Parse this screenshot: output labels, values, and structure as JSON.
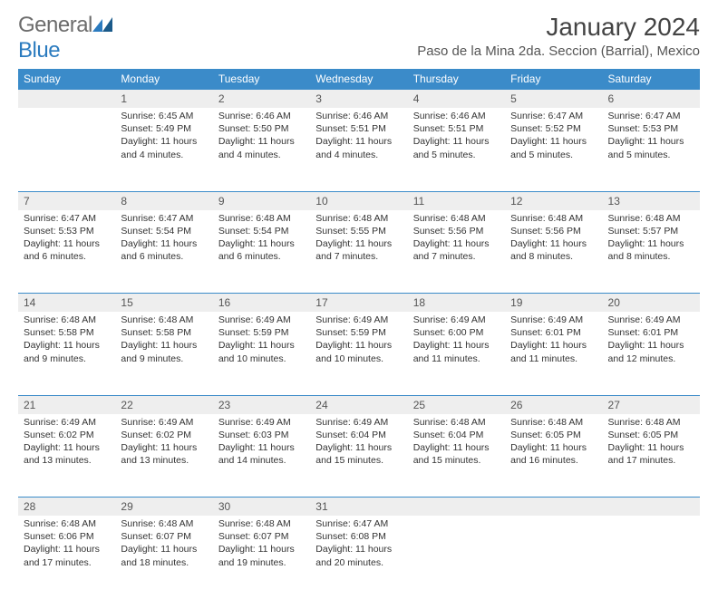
{
  "logo": {
    "text1": "General",
    "text2": "Blue"
  },
  "title": "January 2024",
  "location": "Paso de la Mina 2da. Seccion (Barrial), Mexico",
  "colors": {
    "header_bg": "#3b8bc9",
    "header_text": "#ffffff",
    "daynum_bg": "#eeeeee",
    "daynum_border": "#3b8bc9",
    "body_text": "#333333",
    "logo_gray": "#6c6c6c",
    "logo_blue": "#2b7bbf"
  },
  "weekdays": [
    "Sunday",
    "Monday",
    "Tuesday",
    "Wednesday",
    "Thursday",
    "Friday",
    "Saturday"
  ],
  "weeks": [
    [
      null,
      {
        "num": "1",
        "sunrise": "Sunrise: 6:45 AM",
        "sunset": "Sunset: 5:49 PM",
        "daylight": "Daylight: 11 hours and 4 minutes."
      },
      {
        "num": "2",
        "sunrise": "Sunrise: 6:46 AM",
        "sunset": "Sunset: 5:50 PM",
        "daylight": "Daylight: 11 hours and 4 minutes."
      },
      {
        "num": "3",
        "sunrise": "Sunrise: 6:46 AM",
        "sunset": "Sunset: 5:51 PM",
        "daylight": "Daylight: 11 hours and 4 minutes."
      },
      {
        "num": "4",
        "sunrise": "Sunrise: 6:46 AM",
        "sunset": "Sunset: 5:51 PM",
        "daylight": "Daylight: 11 hours and 5 minutes."
      },
      {
        "num": "5",
        "sunrise": "Sunrise: 6:47 AM",
        "sunset": "Sunset: 5:52 PM",
        "daylight": "Daylight: 11 hours and 5 minutes."
      },
      {
        "num": "6",
        "sunrise": "Sunrise: 6:47 AM",
        "sunset": "Sunset: 5:53 PM",
        "daylight": "Daylight: 11 hours and 5 minutes."
      }
    ],
    [
      {
        "num": "7",
        "sunrise": "Sunrise: 6:47 AM",
        "sunset": "Sunset: 5:53 PM",
        "daylight": "Daylight: 11 hours and 6 minutes."
      },
      {
        "num": "8",
        "sunrise": "Sunrise: 6:47 AM",
        "sunset": "Sunset: 5:54 PM",
        "daylight": "Daylight: 11 hours and 6 minutes."
      },
      {
        "num": "9",
        "sunrise": "Sunrise: 6:48 AM",
        "sunset": "Sunset: 5:54 PM",
        "daylight": "Daylight: 11 hours and 6 minutes."
      },
      {
        "num": "10",
        "sunrise": "Sunrise: 6:48 AM",
        "sunset": "Sunset: 5:55 PM",
        "daylight": "Daylight: 11 hours and 7 minutes."
      },
      {
        "num": "11",
        "sunrise": "Sunrise: 6:48 AM",
        "sunset": "Sunset: 5:56 PM",
        "daylight": "Daylight: 11 hours and 7 minutes."
      },
      {
        "num": "12",
        "sunrise": "Sunrise: 6:48 AM",
        "sunset": "Sunset: 5:56 PM",
        "daylight": "Daylight: 11 hours and 8 minutes."
      },
      {
        "num": "13",
        "sunrise": "Sunrise: 6:48 AM",
        "sunset": "Sunset: 5:57 PM",
        "daylight": "Daylight: 11 hours and 8 minutes."
      }
    ],
    [
      {
        "num": "14",
        "sunrise": "Sunrise: 6:48 AM",
        "sunset": "Sunset: 5:58 PM",
        "daylight": "Daylight: 11 hours and 9 minutes."
      },
      {
        "num": "15",
        "sunrise": "Sunrise: 6:48 AM",
        "sunset": "Sunset: 5:58 PM",
        "daylight": "Daylight: 11 hours and 9 minutes."
      },
      {
        "num": "16",
        "sunrise": "Sunrise: 6:49 AM",
        "sunset": "Sunset: 5:59 PM",
        "daylight": "Daylight: 11 hours and 10 minutes."
      },
      {
        "num": "17",
        "sunrise": "Sunrise: 6:49 AM",
        "sunset": "Sunset: 5:59 PM",
        "daylight": "Daylight: 11 hours and 10 minutes."
      },
      {
        "num": "18",
        "sunrise": "Sunrise: 6:49 AM",
        "sunset": "Sunset: 6:00 PM",
        "daylight": "Daylight: 11 hours and 11 minutes."
      },
      {
        "num": "19",
        "sunrise": "Sunrise: 6:49 AM",
        "sunset": "Sunset: 6:01 PM",
        "daylight": "Daylight: 11 hours and 11 minutes."
      },
      {
        "num": "20",
        "sunrise": "Sunrise: 6:49 AM",
        "sunset": "Sunset: 6:01 PM",
        "daylight": "Daylight: 11 hours and 12 minutes."
      }
    ],
    [
      {
        "num": "21",
        "sunrise": "Sunrise: 6:49 AM",
        "sunset": "Sunset: 6:02 PM",
        "daylight": "Daylight: 11 hours and 13 minutes."
      },
      {
        "num": "22",
        "sunrise": "Sunrise: 6:49 AM",
        "sunset": "Sunset: 6:02 PM",
        "daylight": "Daylight: 11 hours and 13 minutes."
      },
      {
        "num": "23",
        "sunrise": "Sunrise: 6:49 AM",
        "sunset": "Sunset: 6:03 PM",
        "daylight": "Daylight: 11 hours and 14 minutes."
      },
      {
        "num": "24",
        "sunrise": "Sunrise: 6:49 AM",
        "sunset": "Sunset: 6:04 PM",
        "daylight": "Daylight: 11 hours and 15 minutes."
      },
      {
        "num": "25",
        "sunrise": "Sunrise: 6:48 AM",
        "sunset": "Sunset: 6:04 PM",
        "daylight": "Daylight: 11 hours and 15 minutes."
      },
      {
        "num": "26",
        "sunrise": "Sunrise: 6:48 AM",
        "sunset": "Sunset: 6:05 PM",
        "daylight": "Daylight: 11 hours and 16 minutes."
      },
      {
        "num": "27",
        "sunrise": "Sunrise: 6:48 AM",
        "sunset": "Sunset: 6:05 PM",
        "daylight": "Daylight: 11 hours and 17 minutes."
      }
    ],
    [
      {
        "num": "28",
        "sunrise": "Sunrise: 6:48 AM",
        "sunset": "Sunset: 6:06 PM",
        "daylight": "Daylight: 11 hours and 17 minutes."
      },
      {
        "num": "29",
        "sunrise": "Sunrise: 6:48 AM",
        "sunset": "Sunset: 6:07 PM",
        "daylight": "Daylight: 11 hours and 18 minutes."
      },
      {
        "num": "30",
        "sunrise": "Sunrise: 6:48 AM",
        "sunset": "Sunset: 6:07 PM",
        "daylight": "Daylight: 11 hours and 19 minutes."
      },
      {
        "num": "31",
        "sunrise": "Sunrise: 6:47 AM",
        "sunset": "Sunset: 6:08 PM",
        "daylight": "Daylight: 11 hours and 20 minutes."
      },
      null,
      null,
      null
    ]
  ]
}
